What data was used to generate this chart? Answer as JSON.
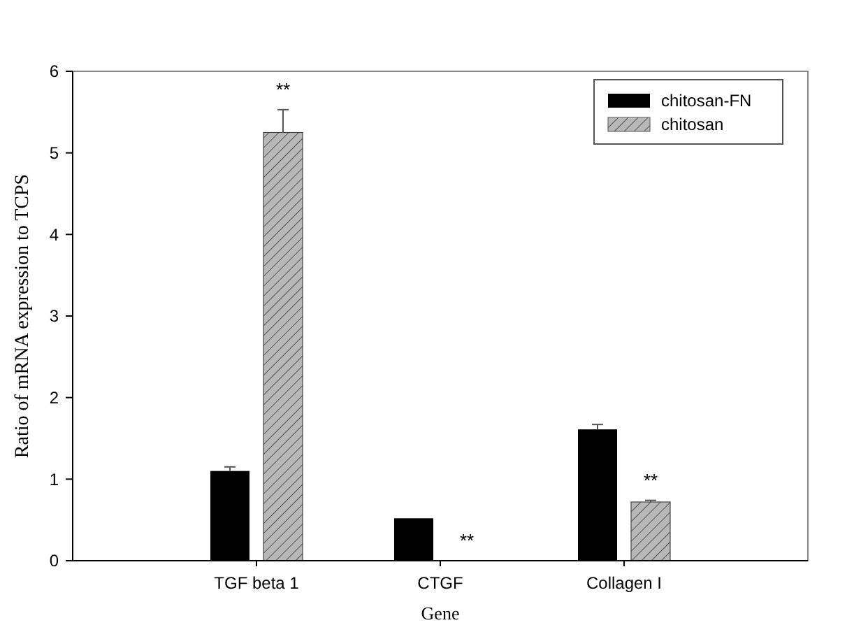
{
  "chart_data": {
    "type": "bar",
    "xlabel": "Gene",
    "ylabel": "Ratio of mRNA expression to TCPS",
    "categories": [
      "TGF beta 1",
      "CTGF",
      "Collagen I"
    ],
    "series": [
      {
        "name": "chitosan-FN",
        "color": "#000000",
        "values": [
          1.1,
          0.52,
          1.61
        ],
        "errors": [
          0.05,
          null,
          0.06
        ]
      },
      {
        "name": "chitosan",
        "color": "#b8b8b8",
        "values": [
          5.25,
          0,
          0.72
        ],
        "errors": [
          0.28,
          null,
          0.02
        ]
      }
    ],
    "ylim": [
      0,
      6
    ],
    "yticks": [
      0,
      1,
      2,
      3,
      4,
      5,
      6
    ],
    "legend": "top right",
    "annotations": [
      "**",
      "**",
      "**"
    ]
  }
}
